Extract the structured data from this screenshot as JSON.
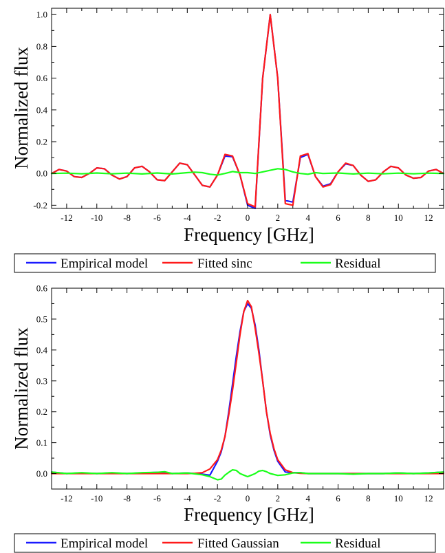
{
  "colors": {
    "empirical": "#1a1aff",
    "fitted": "#ff1a1a",
    "residual": "#1aff1a",
    "axis": "#000000"
  },
  "chart_data": [
    {
      "type": "line",
      "xlabel": "Frequency [GHz]",
      "ylabel": "Normalized flux",
      "xlim": [
        -13,
        13
      ],
      "ylim": [
        -0.22,
        1.04
      ],
      "xticks": [
        -12,
        -10,
        -8,
        -6,
        -4,
        -2,
        0,
        2,
        4,
        6,
        8,
        10,
        12
      ],
      "xtick_labels": [
        "-12",
        "-10",
        "-8",
        "-6",
        "-4",
        "-2",
        "0",
        "2",
        "4",
        "6",
        "8",
        "10",
        "12"
      ],
      "yticks": [
        -0.2,
        0.0,
        0.2,
        0.4,
        0.6,
        0.8,
        1.0
      ],
      "ytick_labels": [
        "-0.2",
        "0.0",
        "0.2",
        "0.4",
        "0.6",
        "0.8",
        "1.0"
      ],
      "legend": [
        "Empirical model",
        "Fitted sinc",
        "Residual"
      ],
      "series": [
        {
          "name": "Empirical model",
          "x": [
            -13.0,
            -12.5,
            -12.0,
            -11.5,
            -11.0,
            -10.5,
            -10.0,
            -9.5,
            -9.0,
            -8.5,
            -8.0,
            -7.5,
            -7.0,
            -6.5,
            -6.0,
            -5.5,
            -5.0,
            -4.5,
            -4.0,
            -3.5,
            -3.0,
            -2.5,
            -2.0,
            -1.5,
            -1.0,
            -0.5,
            0.0,
            0.5,
            1.0,
            1.5,
            2.0,
            2.5,
            3.0,
            3.5,
            4.0,
            4.5,
            5.0,
            5.5,
            6.0,
            6.5,
            7.0,
            7.5,
            8.0,
            8.5,
            9.0,
            9.5,
            10.0,
            10.5,
            11.0,
            11.5,
            12.0,
            12.5,
            13.0
          ],
          "values": [
            0.0,
            0.025,
            0.015,
            -0.02,
            -0.025,
            0.0,
            0.035,
            0.03,
            -0.01,
            -0.035,
            -0.02,
            0.035,
            0.045,
            0.01,
            -0.04,
            -0.045,
            0.01,
            0.065,
            0.055,
            -0.01,
            -0.075,
            -0.085,
            -0.01,
            0.11,
            0.105,
            -0.01,
            -0.2,
            -0.22,
            0.6,
            1.0,
            0.6,
            -0.17,
            -0.18,
            0.1,
            0.12,
            -0.02,
            -0.08,
            -0.065,
            0.01,
            0.06,
            0.05,
            -0.01,
            -0.05,
            -0.04,
            0.01,
            0.045,
            0.035,
            -0.01,
            -0.03,
            -0.025,
            0.015,
            0.025,
            0.0
          ]
        },
        {
          "name": "Fitted sinc",
          "x": [
            -13.0,
            -12.5,
            -12.0,
            -11.5,
            -11.0,
            -10.5,
            -10.0,
            -9.5,
            -9.0,
            -8.5,
            -8.0,
            -7.5,
            -7.0,
            -6.5,
            -6.0,
            -5.5,
            -5.0,
            -4.5,
            -4.0,
            -3.5,
            -3.0,
            -2.5,
            -2.0,
            -1.5,
            -1.0,
            -0.5,
            0.0,
            0.5,
            1.0,
            1.5,
            2.0,
            2.5,
            3.0,
            3.5,
            4.0,
            4.5,
            5.0,
            5.5,
            6.0,
            6.5,
            7.0,
            7.5,
            8.0,
            8.5,
            9.0,
            9.5,
            10.0,
            10.5,
            11.0,
            11.5,
            12.0,
            12.5,
            13.0
          ],
          "values": [
            0.0,
            0.025,
            0.015,
            -0.02,
            -0.025,
            0.0,
            0.035,
            0.03,
            -0.01,
            -0.035,
            -0.02,
            0.035,
            0.045,
            0.01,
            -0.04,
            -0.045,
            0.01,
            0.065,
            0.055,
            -0.01,
            -0.075,
            -0.085,
            -0.01,
            0.12,
            0.11,
            -0.01,
            -0.19,
            -0.21,
            0.6,
            1.0,
            0.6,
            -0.19,
            -0.2,
            0.11,
            0.125,
            -0.02,
            -0.085,
            -0.07,
            0.01,
            0.065,
            0.05,
            -0.01,
            -0.05,
            -0.04,
            0.01,
            0.045,
            0.035,
            -0.01,
            -0.03,
            -0.025,
            0.015,
            0.025,
            0.0
          ]
        },
        {
          "name": "Residual",
          "x": [
            -13.0,
            -12.0,
            -11.0,
            -10.0,
            -9.0,
            -8.0,
            -7.0,
            -6.0,
            -5.0,
            -4.0,
            -3.5,
            -3.0,
            -2.5,
            -2.0,
            -1.5,
            -1.0,
            -0.5,
            0.0,
            0.5,
            1.0,
            1.5,
            2.0,
            2.5,
            3.0,
            3.5,
            4.0,
            4.5,
            5.0,
            6.0,
            7.0,
            8.0,
            9.0,
            10.0,
            11.0,
            12.0,
            13.0
          ],
          "values": [
            0.0,
            0.002,
            -0.002,
            0.003,
            -0.002,
            0.002,
            -0.003,
            0.003,
            -0.003,
            0.005,
            0.008,
            0.005,
            -0.005,
            -0.01,
            0.0,
            0.012,
            0.005,
            0.005,
            0.0,
            0.01,
            0.02,
            0.03,
            0.025,
            0.01,
            0.0,
            -0.005,
            0.005,
            0.0,
            0.003,
            -0.003,
            0.002,
            -0.002,
            0.002,
            -0.002,
            0.002,
            0.0
          ]
        }
      ]
    },
    {
      "type": "line",
      "xlabel": "Frequency [GHz]",
      "ylabel": "Normalized flux",
      "xlim": [
        -13,
        13
      ],
      "ylim": [
        -0.05,
        0.6
      ],
      "xticks": [
        -12,
        -10,
        -8,
        -6,
        -4,
        -2,
        0,
        2,
        4,
        6,
        8,
        10,
        12
      ],
      "xtick_labels": [
        "-12",
        "-10",
        "-8",
        "-6",
        "-4",
        "-2",
        "0",
        "2",
        "4",
        "6",
        "8",
        "10",
        "12"
      ],
      "yticks": [
        0.0,
        0.1,
        0.2,
        0.3,
        0.4,
        0.5,
        0.6
      ],
      "ytick_labels": [
        "0.0",
        "0.1",
        "0.2",
        "0.3",
        "0.4",
        "0.5",
        "0.6"
      ],
      "legend": [
        "Empirical model",
        "Fitted Gaussian",
        "Residual"
      ],
      "series": [
        {
          "name": "Empirical model",
          "x": [
            -13.0,
            -12.0,
            -11.0,
            -10.0,
            -9.0,
            -8.0,
            -7.0,
            -6.0,
            -5.0,
            -4.0,
            -3.5,
            -3.0,
            -2.5,
            -2.0,
            -1.75,
            -1.5,
            -1.25,
            -1.0,
            -0.75,
            -0.5,
            -0.25,
            0.0,
            0.25,
            0.5,
            0.75,
            1.0,
            1.25,
            1.5,
            1.75,
            2.0,
            2.5,
            3.0,
            3.5,
            4.0,
            5.0,
            6.0,
            7.0,
            8.0,
            9.0,
            10.0,
            11.0,
            12.0,
            13.0
          ],
          "values": [
            0.005,
            0.0,
            0.002,
            0.0,
            0.002,
            0.0,
            0.002,
            0.004,
            0.0,
            0.002,
            0.0,
            -0.002,
            -0.005,
            0.04,
            0.07,
            0.12,
            0.2,
            0.29,
            0.38,
            0.46,
            0.525,
            0.55,
            0.535,
            0.48,
            0.4,
            0.3,
            0.2,
            0.125,
            0.075,
            0.04,
            0.005,
            0.003,
            0.003,
            0.0,
            0.0,
            0.0,
            0.0,
            0.0,
            0.0,
            0.002,
            0.0,
            0.002,
            0.005
          ]
        },
        {
          "name": "Fitted Gaussian",
          "x": [
            -13.0,
            -12.0,
            -11.0,
            -10.0,
            -9.0,
            -8.0,
            -7.0,
            -6.0,
            -5.0,
            -4.0,
            -3.5,
            -3.0,
            -2.5,
            -2.0,
            -1.75,
            -1.5,
            -1.25,
            -1.0,
            -0.75,
            -0.5,
            -0.25,
            0.0,
            0.25,
            0.5,
            0.75,
            1.0,
            1.25,
            1.5,
            1.75,
            2.0,
            2.5,
            3.0,
            3.5,
            4.0,
            5.0,
            6.0,
            7.0,
            8.0,
            9.0,
            10.0,
            11.0,
            12.0,
            13.0
          ],
          "values": [
            0.0,
            0.0,
            0.0,
            0.0,
            0.0,
            0.0,
            0.0,
            0.0,
            0.0,
            0.0,
            0.001,
            0.003,
            0.015,
            0.045,
            0.075,
            0.12,
            0.19,
            0.27,
            0.36,
            0.45,
            0.525,
            0.56,
            0.54,
            0.47,
            0.39,
            0.3,
            0.2,
            0.13,
            0.08,
            0.045,
            0.012,
            0.003,
            0.001,
            0.0,
            0.0,
            0.0,
            0.0,
            0.0,
            0.0,
            0.0,
            0.0,
            0.0,
            0.0
          ]
        },
        {
          "name": "Residual",
          "x": [
            -13.0,
            -12.0,
            -11.0,
            -10.0,
            -9.0,
            -8.0,
            -7.0,
            -6.0,
            -5.5,
            -5.0,
            -4.0,
            -3.0,
            -2.5,
            -2.0,
            -1.75,
            -1.5,
            -1.25,
            -1.0,
            -0.75,
            -0.5,
            -0.25,
            0.0,
            0.25,
            0.5,
            0.75,
            1.0,
            1.25,
            1.5,
            2.0,
            2.5,
            3.0,
            3.5,
            4.0,
            5.0,
            6.0,
            7.0,
            8.0,
            9.0,
            10.0,
            11.0,
            12.0,
            13.0
          ],
          "values": [
            0.005,
            0.0,
            0.003,
            0.0,
            0.003,
            0.0,
            0.003,
            0.004,
            0.006,
            0.0,
            0.002,
            -0.004,
            -0.01,
            -0.02,
            -0.018,
            -0.005,
            0.004,
            0.012,
            0.01,
            0.0,
            -0.005,
            -0.01,
            -0.005,
            0.0,
            0.008,
            0.01,
            0.006,
            0.0,
            -0.006,
            -0.004,
            0.002,
            0.003,
            0.0,
            0.0,
            0.0,
            -0.002,
            0.0,
            0.0,
            0.002,
            0.0,
            0.002,
            0.005
          ]
        }
      ]
    }
  ]
}
